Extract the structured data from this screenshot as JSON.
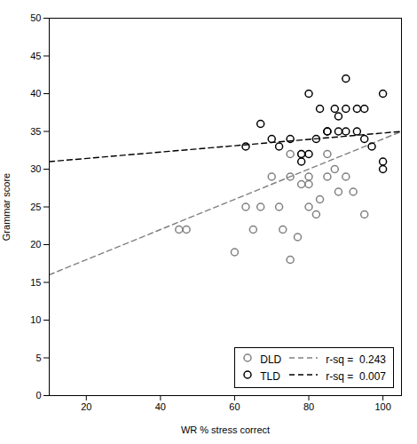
{
  "chart_data": {
    "type": "scatter",
    "xlabel": "WR % stress correct",
    "ylabel": "Grammar score",
    "xlim": [
      10,
      105
    ],
    "ylim": [
      0,
      50
    ],
    "xticks": [
      20,
      40,
      60,
      80,
      100
    ],
    "yticks": [
      0,
      5,
      10,
      15,
      20,
      25,
      30,
      35,
      40,
      45,
      50
    ],
    "grid": false,
    "legend": "lower right",
    "series": [
      {
        "name": "DLD",
        "type": "scatter",
        "color": "#808080",
        "marker": "circle",
        "x": [
          45,
          47,
          60,
          63,
          65,
          67,
          70,
          72,
          73,
          75,
          75,
          75,
          77,
          78,
          78,
          80,
          80,
          80,
          82,
          83,
          85,
          85,
          87,
          88,
          90,
          92,
          95
        ],
        "values": [
          22,
          22,
          19,
          25,
          22,
          25,
          29,
          25,
          22,
          18,
          29,
          32,
          21,
          28,
          32,
          25,
          28,
          29,
          24,
          26,
          29,
          32,
          30,
          27,
          29,
          27,
          24
        ]
      },
      {
        "name": "TLD",
        "type": "scatter",
        "color": "#000000",
        "marker": "circle",
        "x": [
          63,
          67,
          70,
          72,
          75,
          78,
          78,
          80,
          80,
          82,
          83,
          85,
          85,
          87,
          88,
          88,
          90,
          90,
          90,
          93,
          93,
          95,
          95,
          97,
          100,
          100,
          100
        ],
        "values": [
          33,
          36,
          34,
          33,
          34,
          31,
          32,
          40,
          32,
          34,
          38,
          35,
          35,
          38,
          37,
          35,
          35,
          38,
          42,
          38,
          35,
          34,
          38,
          33,
          31,
          30,
          40
        ]
      },
      {
        "name": "r-sq =  0.243",
        "type": "line",
        "color": "#808080",
        "line_style": "dashed",
        "x": [
          10,
          105
        ],
        "values": [
          16.0,
          35.0
        ]
      },
      {
        "name": "r-sq =  0.007",
        "type": "line",
        "color": "#000000",
        "line_style": "dashed",
        "x": [
          10,
          105
        ],
        "values": [
          31.0,
          35.0
        ]
      }
    ]
  }
}
